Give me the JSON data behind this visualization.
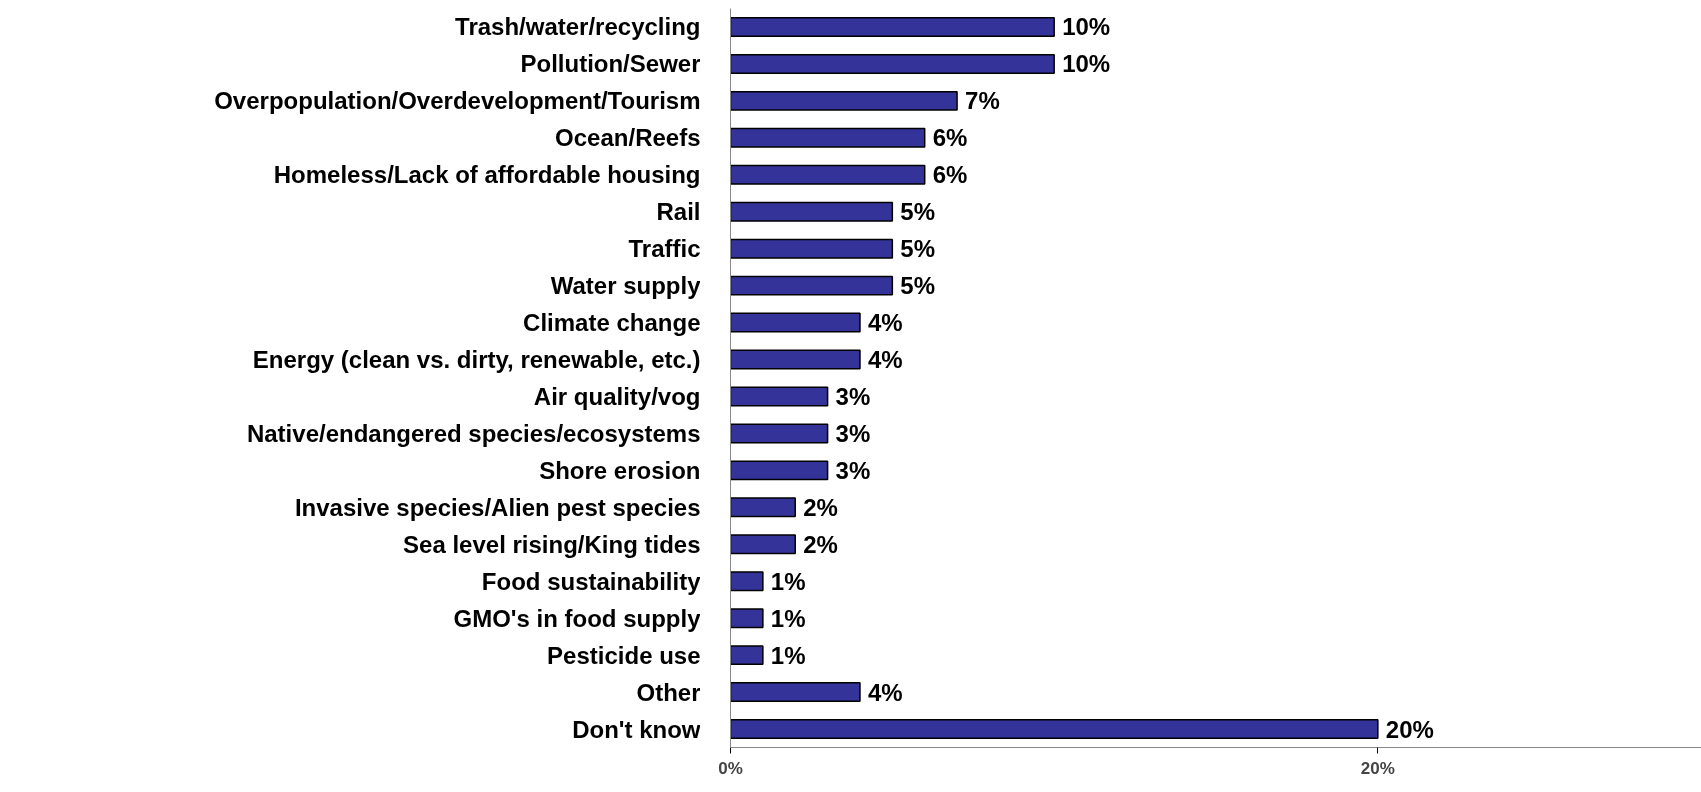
{
  "chart_data": {
    "type": "bar",
    "orientation": "horizontal",
    "categories": [
      "Trash/water/recycling",
      "Pollution/Sewer",
      "Overpopulation/Overdevelopment/Tourism",
      "Ocean/Reefs",
      "Homeless/Lack of affordable housing",
      "Rail",
      "Traffic",
      "Water supply",
      "Climate change",
      "Energy (clean vs. dirty, renewable, etc.)",
      "Air quality/vog",
      "Native/endangered species/ecosystems",
      "Shore erosion",
      "Invasive species/Alien pest species",
      "Sea level rising/King tides",
      "Food sustainability",
      "GMO's in food supply",
      "Pesticide use",
      "Other",
      "Don't know"
    ],
    "values": [
      10,
      10,
      7,
      6,
      6,
      5,
      5,
      5,
      4,
      4,
      3,
      3,
      3,
      2,
      2,
      1,
      1,
      1,
      4,
      20
    ],
    "value_labels": [
      "10%",
      "10%",
      "7%",
      "6%",
      "6%",
      "5%",
      "5%",
      "5%",
      "4%",
      "4%",
      "3%",
      "3%",
      "3%",
      "2%",
      "2%",
      "1%",
      "1%",
      "1%",
      "4%",
      "20%"
    ],
    "color": "#333399",
    "xlim": [
      0,
      30
    ],
    "xticks": [
      {
        "value": 0,
        "label": "0%"
      },
      {
        "value": 20,
        "label": "20%"
      }
    ],
    "grid": false
  }
}
